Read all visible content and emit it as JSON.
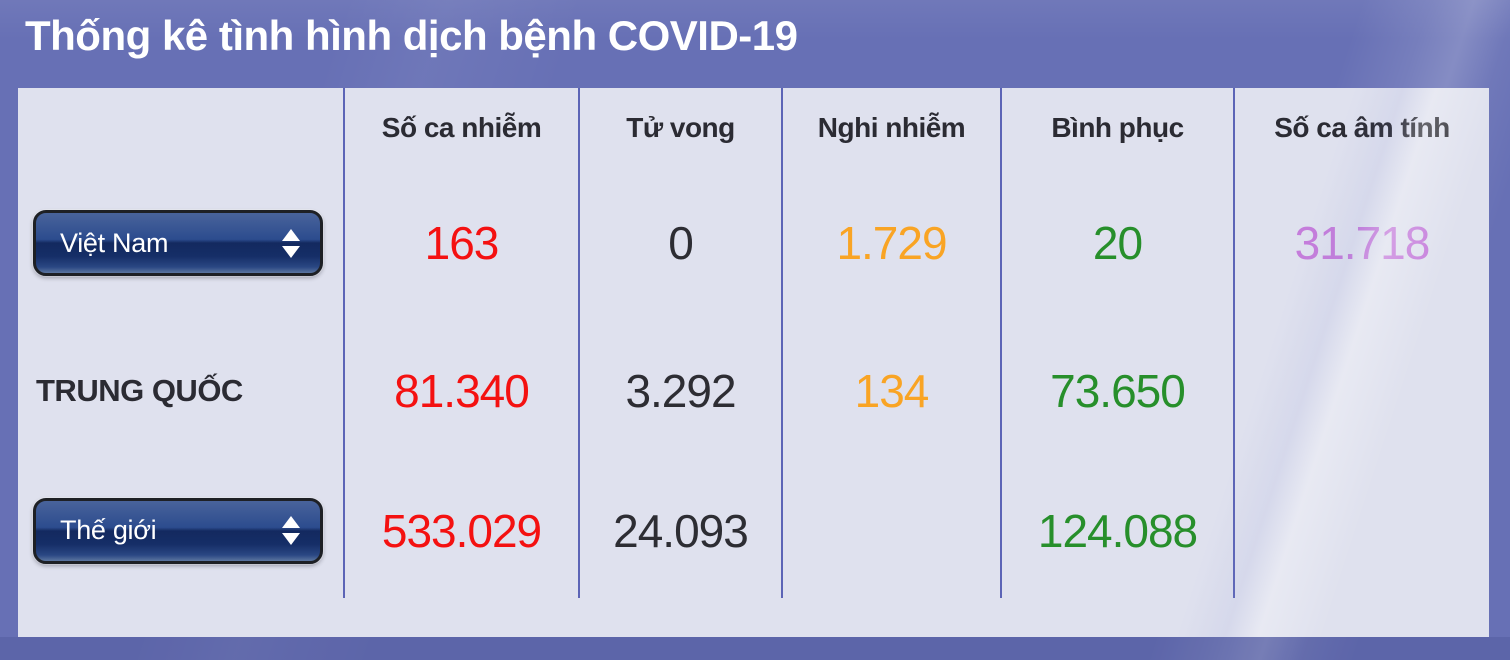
{
  "page": {
    "title": "Thống kê tình hình dịch bệnh COVID-19"
  },
  "table": {
    "columns": [
      "",
      "Số ca nhiễm",
      "Tử vong",
      "Nghi nhiễm",
      "Bình phục",
      "Số ca âm tính"
    ],
    "rows": [
      {
        "label": "Việt Nam",
        "control": "dropdown",
        "values": {
          "infected": "163",
          "deaths": "0",
          "suspected": "1.729",
          "recovered": "20",
          "negative": "31.718"
        }
      },
      {
        "label": "TRUNG QUỐC",
        "control": "static",
        "values": {
          "infected": "81.340",
          "deaths": "3.292",
          "suspected": "134",
          "recovered": "73.650",
          "negative": ""
        }
      },
      {
        "label": "Thế giới",
        "control": "dropdown",
        "values": {
          "infected": "533.029",
          "deaths": "24.093",
          "suspected": "",
          "recovered": "124.088",
          "negative": ""
        }
      }
    ]
  },
  "colors": {
    "infected": "#f41111",
    "deaths": "#2d2d33",
    "suspected": "#f9a424",
    "recovered": "#278f2b",
    "negative": "#c57ddb",
    "background": "#6770b5",
    "table_background": "#dfe1ee",
    "grid_line": "#5c64b6",
    "title_text": "#ffffff"
  },
  "icons": {
    "dropdown_arrows": "up-down-triangles"
  }
}
